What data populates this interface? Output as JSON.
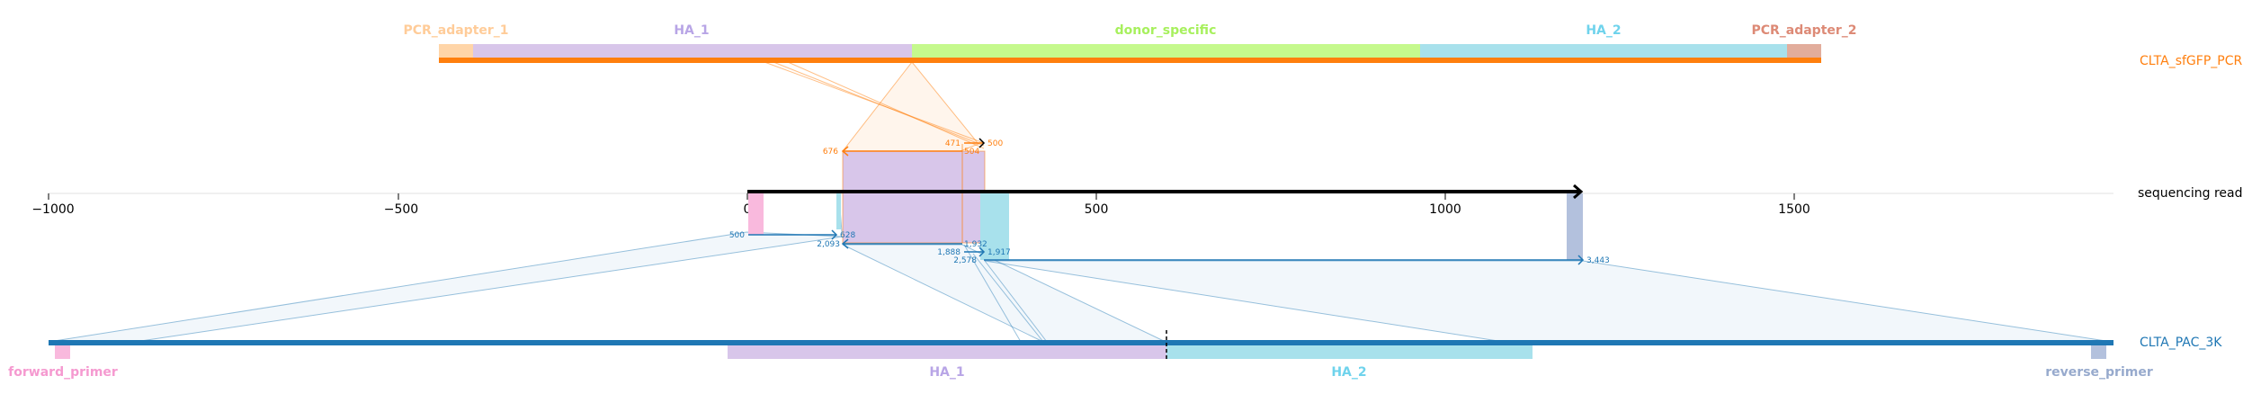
{
  "colors": {
    "pcr_line": "#ff7f0e",
    "pac_line": "#1f77b4",
    "read_line": "#000000",
    "pcr_adapter_1": "#ffd5a8",
    "ha_1": "#d8c6ea",
    "donor_specific": "#c5f98d",
    "ha_2": "#a8e1ec",
    "pcr_adapter_2": "#e2ad9c",
    "forward_primer": "#f9b9dd",
    "reverse_primer": "#b3c1dd",
    "pcr_adapter_1_text": "#ffcc99",
    "ha_1_text": "#b8a5e6",
    "donor_specific_text": "#a7f05d",
    "ha_2_text": "#6fd3ec",
    "pcr_adapter_2_text": "#dd8a76",
    "forward_primer_text": "#f59ad0",
    "reverse_primer_text": "#97aacd"
  },
  "targets": {
    "pcr": {
      "name": "CLTA_sfGFP_PCR",
      "features": [
        {
          "key": "pcr_adapter_1",
          "label": "PCR_adapter_1",
          "start": -441,
          "end": -392
        },
        {
          "key": "ha_1",
          "label": "HA_1",
          "start": -392,
          "end": 235
        },
        {
          "key": "donor_specific",
          "label": "donor_specific",
          "start": 235,
          "end": 964
        },
        {
          "key": "ha_2",
          "label": "HA_2",
          "start": 964,
          "end": 1490
        },
        {
          "key": "pcr_adapter_2",
          "label": "PCR_adapter_2",
          "start": 1490,
          "end": 1537
        }
      ]
    },
    "pac": {
      "name": "CLTA_PAC_3K",
      "features": [
        {
          "key": "forward_primer",
          "label": "forward_primer"
        },
        {
          "key": "ha_1",
          "label": "HA_1"
        },
        {
          "key": "ha_2",
          "label": "HA_2"
        },
        {
          "key": "reverse_primer",
          "label": "reverse_primer"
        }
      ]
    }
  },
  "read": {
    "name": "sequencing read",
    "length": 1200
  },
  "axis": {
    "ticks": [
      -1000,
      -500,
      0,
      500,
      1000,
      1500
    ]
  },
  "coordinate_labels": {
    "pcr": [
      "676",
      "471",
      "500",
      "504"
    ],
    "pac": [
      "500",
      "628",
      "2,093",
      "1,932",
      "1,888",
      "1,917",
      "2,578",
      "3,443"
    ]
  }
}
